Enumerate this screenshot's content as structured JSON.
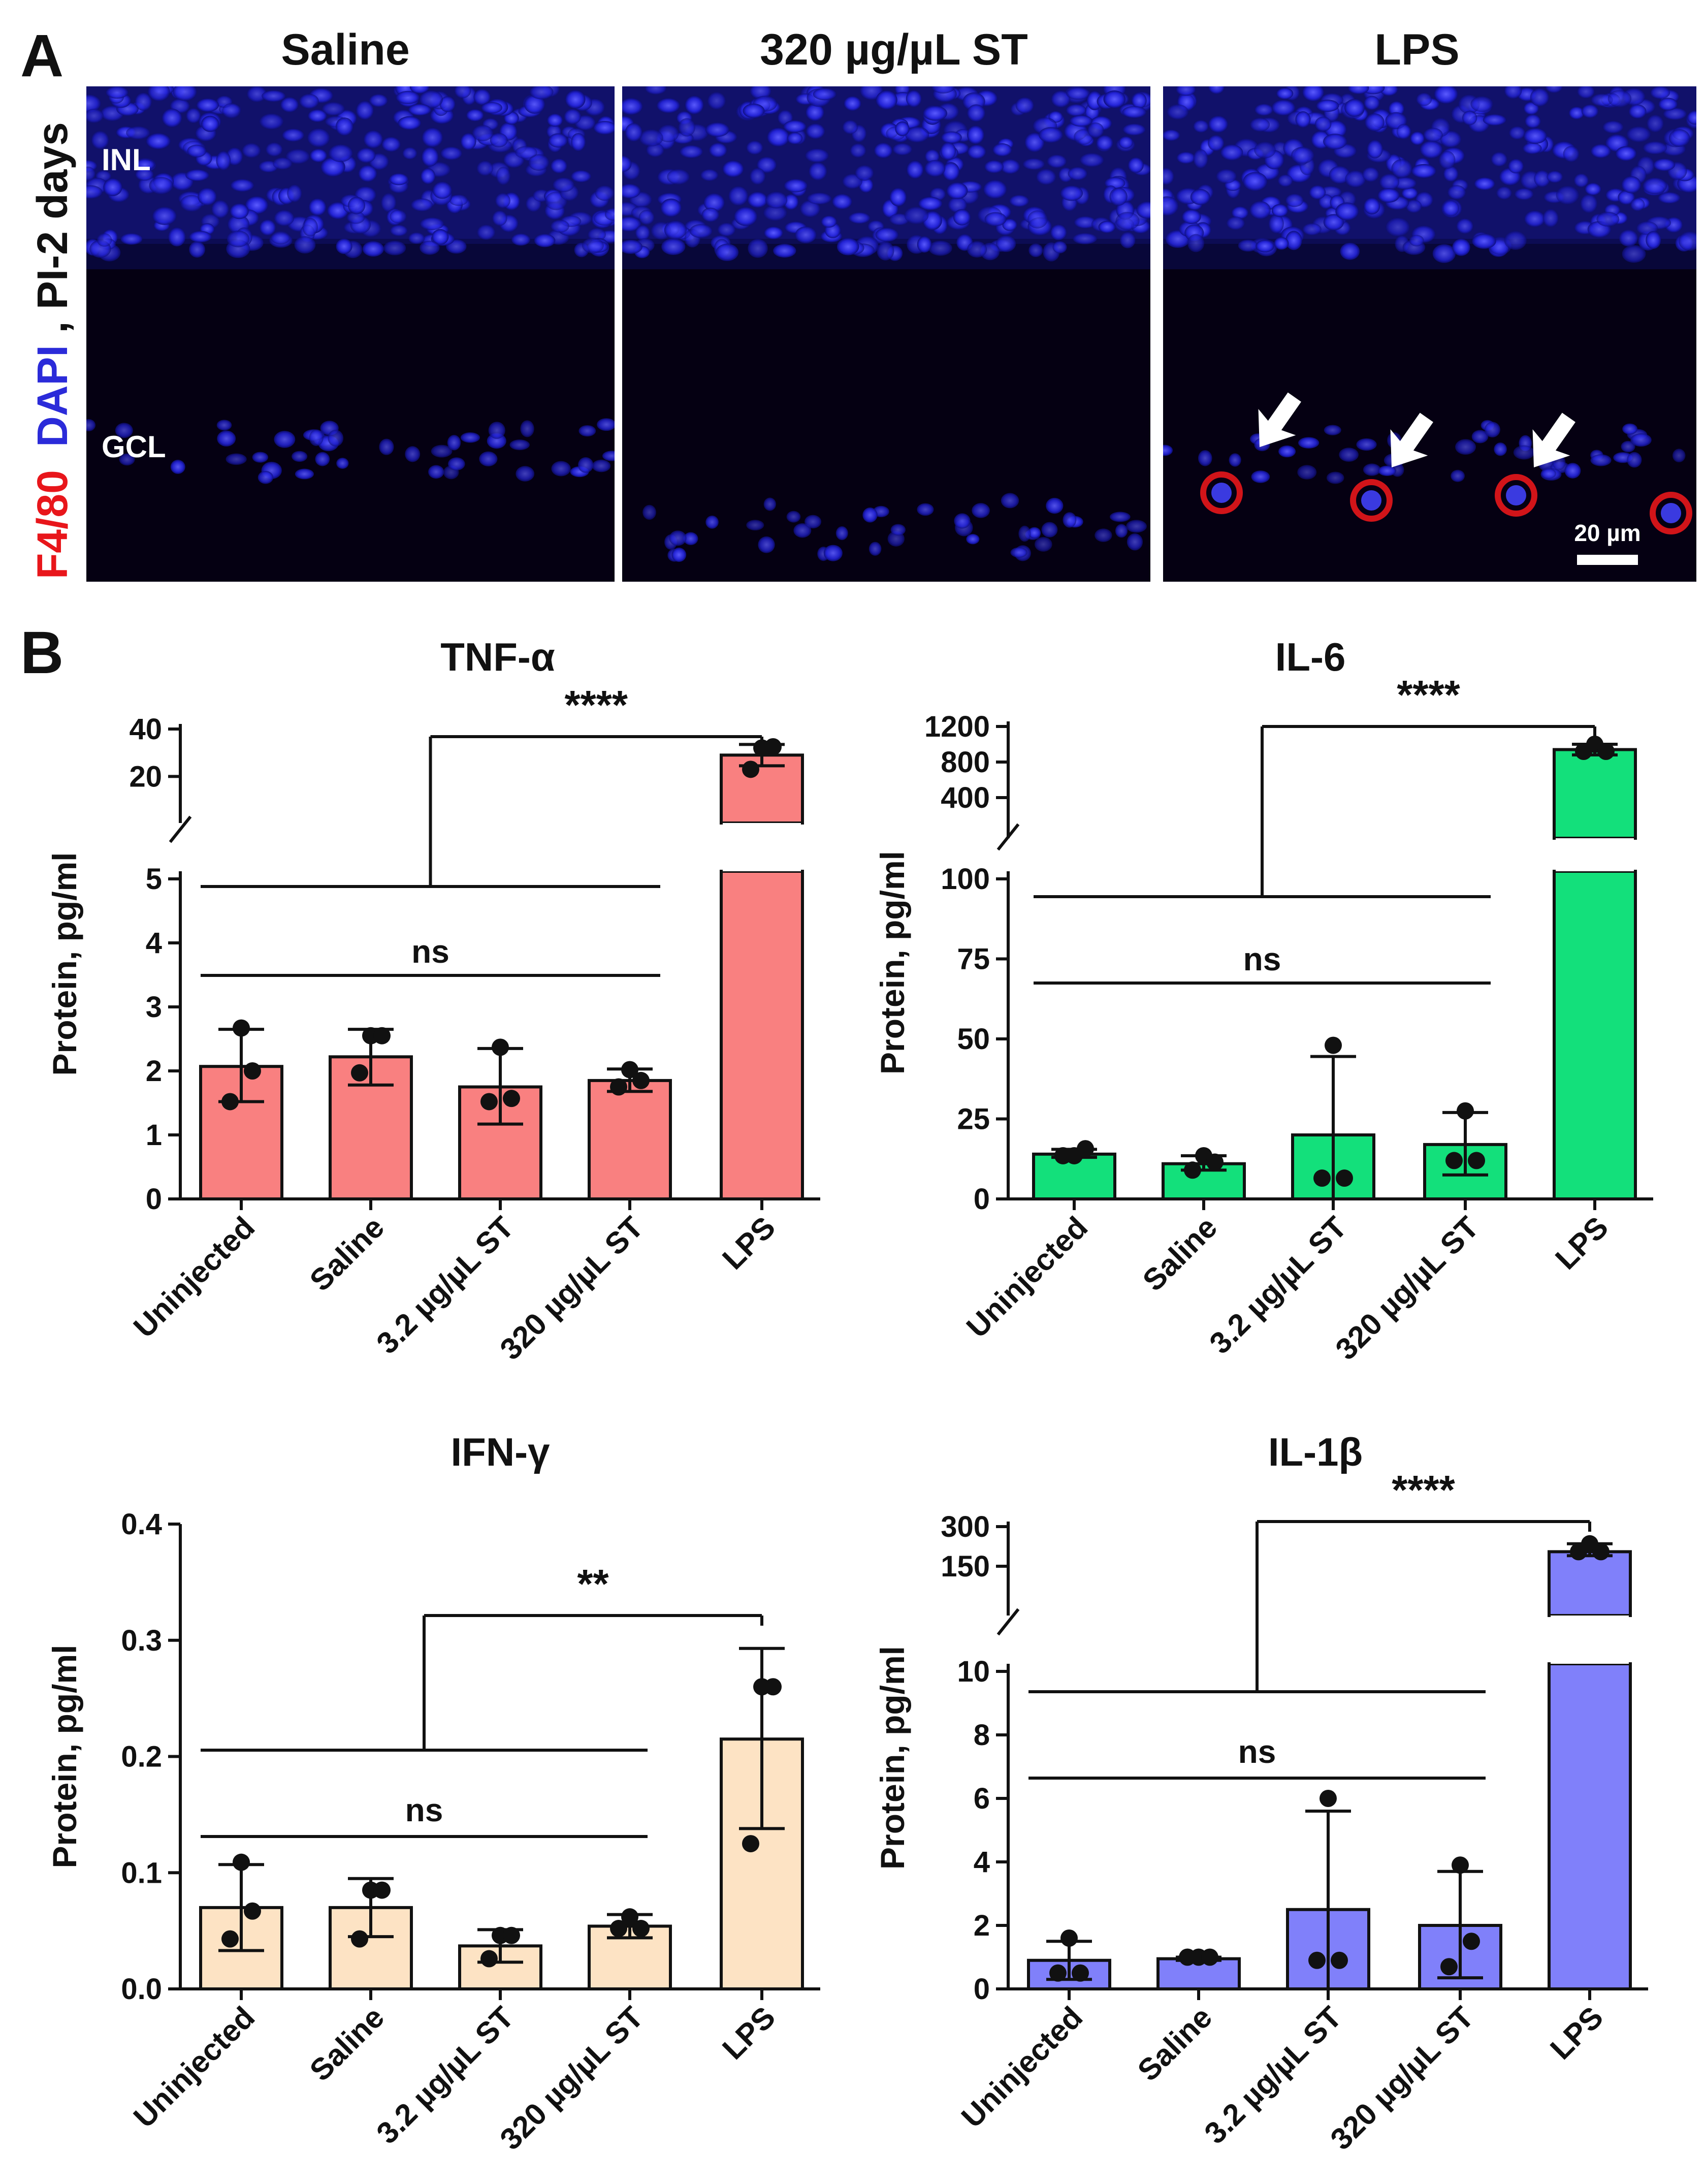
{
  "panel_a": {
    "letter": "A",
    "side_label": {
      "marker": "F4/80",
      "stain": "DAPI",
      "timepoint": ", PI-2 days"
    },
    "titles": [
      "Saline",
      "320 µg/µL ST",
      "LPS"
    ],
    "layers": {
      "inl": "INL",
      "gcl": "GCL"
    },
    "scale_bar": "20 µm",
    "colors": {
      "marker": "#e8161b",
      "stain": "#2b2bd9",
      "text": "#111111"
    }
  },
  "panel_b": {
    "letter": "B"
  },
  "chart_data": [
    {
      "type": "bar",
      "title": "TNF-α",
      "ylabel": "Protein, pg/ml",
      "categories": [
        "Uninjected",
        "Saline",
        "3.2 µg/µL ST",
        "320 µg/µL ST",
        "LPS"
      ],
      "values": [
        2.07,
        2.22,
        1.75,
        1.85,
        29.0
      ],
      "error_low": [
        1.52,
        1.78,
        1.17,
        1.68,
        24.5
      ],
      "error_high": [
        2.65,
        2.65,
        2.35,
        2.03,
        33.5
      ],
      "points": [
        [
          2.67,
          2.0,
          1.52
        ],
        [
          2.55,
          2.55,
          1.97
        ],
        [
          2.37,
          1.57,
          1.52
        ],
        [
          2.02,
          1.85,
          1.75
        ],
        [
          32.0,
          32.5,
          23.0
        ]
      ],
      "lower_axis": {
        "range": [
          0,
          5
        ],
        "ticks": [
          0,
          1,
          2,
          3,
          4,
          5
        ],
        "tick_labels": [
          "0",
          "1",
          "2",
          "3",
          "4",
          "5"
        ]
      },
      "upper_axis": {
        "range": [
          10,
          40
        ],
        "ticks": [
          20,
          40
        ],
        "tick_labels": [
          "20",
          "40"
        ]
      },
      "bar_color": "#f98080",
      "ns_label": "ns",
      "sig_label": "****"
    },
    {
      "type": "bar",
      "title": "IL-6",
      "ylabel": "Protein, pg/ml",
      "categories": [
        "Uninjected",
        "Saline",
        "3.2 µg/µL ST",
        "320 µg/µL ST",
        "LPS"
      ],
      "values": [
        14.0,
        11.0,
        20.0,
        17.0,
        940.0
      ],
      "error_low": [
        13.0,
        9.0,
        0.0,
        7.5,
        880.0
      ],
      "error_high": [
        15.5,
        13.5,
        44.5,
        27.0,
        1000.0
      ],
      "points": [
        [
          13.5,
          15.7,
          13.5
        ],
        [
          13.5,
          11.5,
          9.0
        ],
        [
          48.0,
          6.5,
          6.5
        ],
        [
          27.5,
          12.0,
          12.0
        ],
        [
          1000.0,
          920.0,
          920.0
        ]
      ],
      "lower_axis": {
        "range": [
          0,
          100
        ],
        "ticks": [
          0,
          25,
          50,
          75,
          100
        ],
        "tick_labels": [
          "0",
          "25",
          "50",
          "75",
          "100"
        ]
      },
      "upper_axis": {
        "range": [
          200,
          1200
        ],
        "ticks": [
          400,
          800,
          1200
        ],
        "tick_labels": [
          "400",
          "800",
          "1200"
        ]
      },
      "bar_color": "#13e07b",
      "ns_label": "ns",
      "sig_label": "****"
    },
    {
      "type": "bar",
      "title": "IFN-γ",
      "ylabel": "Protein, pg/ml",
      "categories": [
        "Uninjected",
        "Saline",
        "3.2 µg/µL ST",
        "320 µg/µL ST",
        "LPS"
      ],
      "values": [
        0.07,
        0.07,
        0.037,
        0.054,
        0.215
      ],
      "error_low": [
        0.033,
        0.045,
        0.023,
        0.044,
        0.138
      ],
      "error_high": [
        0.107,
        0.095,
        0.051,
        0.064,
        0.293
      ],
      "points": [
        [
          0.109,
          0.067,
          0.043
        ],
        [
          0.085,
          0.085,
          0.043
        ],
        [
          0.046,
          0.046,
          0.026
        ],
        [
          0.062,
          0.052,
          0.052
        ],
        [
          0.26,
          0.26,
          0.125
        ]
      ],
      "axis": {
        "range": [
          0,
          0.4
        ],
        "ticks": [
          0,
          0.1,
          0.2,
          0.3,
          0.4
        ],
        "tick_labels": [
          "0.0",
          "0.1",
          "0.2",
          "0.3",
          "0.4"
        ]
      },
      "bar_color": "#fde3c4",
      "ns_label": "ns",
      "sig_label": "**"
    },
    {
      "type": "bar",
      "title": "IL-1β",
      "ylabel": "Protein, pg/ml",
      "categories": [
        "Uninjected",
        "Saline",
        "3.2 µg/µL ST",
        "320 µg/µL ST",
        "LPS"
      ],
      "values": [
        0.9,
        0.95,
        2.5,
        2.0,
        205.0
      ],
      "error_low": [
        0.3,
        0.9,
        0.0,
        0.35,
        190.0
      ],
      "error_high": [
        1.5,
        1.0,
        5.6,
        3.7,
        235.0
      ],
      "points": [
        [
          1.6,
          0.5,
          0.5
        ],
        [
          1.0,
          1.0,
          1.0
        ],
        [
          6.0,
          0.9,
          0.9
        ],
        [
          3.9,
          1.5,
          0.7
        ],
        [
          235.0,
          205.0,
          205.0
        ]
      ],
      "lower_axis": {
        "range": [
          0,
          10
        ],
        "ticks": [
          0,
          2,
          4,
          6,
          8,
          10
        ],
        "tick_labels": [
          "0",
          "2",
          "4",
          "6",
          "8",
          "10"
        ]
      },
      "upper_axis": {
        "range": [
          50,
          300
        ],
        "ticks": [
          150,
          300
        ],
        "tick_labels": [
          "150",
          "300"
        ]
      },
      "bar_color": "#8080fa",
      "ns_label": "ns",
      "sig_label": "****"
    }
  ]
}
